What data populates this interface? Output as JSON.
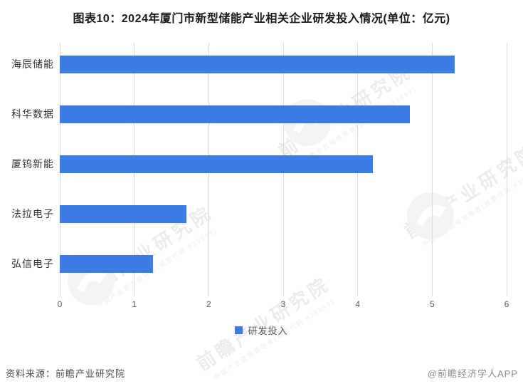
{
  "title": "图表10：2024年厦门市新型储能产业相关企业研发投入情况(单位：亿元)",
  "chart_data": {
    "type": "bar",
    "orientation": "horizontal",
    "title": "图表10：2024年厦门市新型储能产业相关企业研发投入情况(单位：亿元)",
    "unit": "亿元",
    "categories": [
      "海辰储能",
      "科华数据",
      "厦钨新能",
      "法拉电子",
      "弘信电子"
    ],
    "series": [
      {
        "name": "研发投入",
        "values": [
          5.3,
          4.7,
          4.2,
          1.7,
          1.25
        ]
      }
    ],
    "xlim": [
      0,
      6
    ],
    "x_ticks": [
      0,
      1,
      2,
      3,
      4,
      5,
      6
    ],
    "grid": "vertical",
    "legend_position": "bottom",
    "bar_color": "#3c7de5",
    "gridline_color": "#d9d9d9"
  },
  "legend": {
    "label": "研发投入",
    "swatch_color": "#3c7de5"
  },
  "footer": {
    "source": "资料来源：前瞻产业研究院",
    "credit": "@前瞻经济学人APP"
  },
  "watermark": {
    "big_text": "前瞻产业研究院",
    "small_text": "中国产业咨询领导者(股票代码:839599)"
  }
}
